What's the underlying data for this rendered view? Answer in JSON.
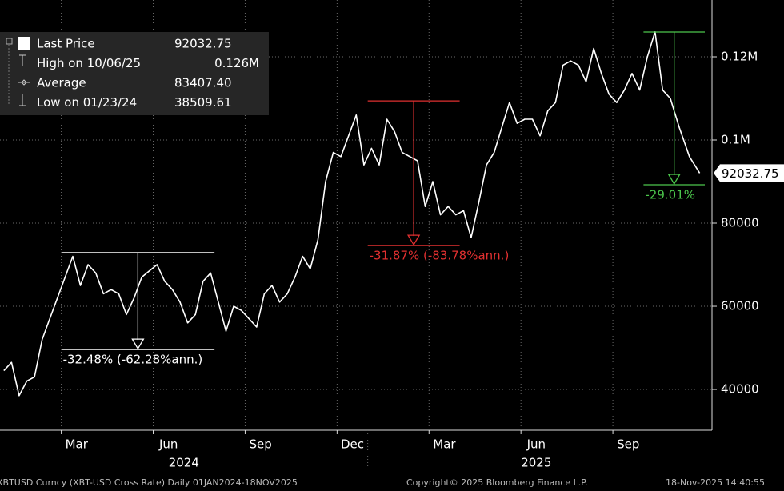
{
  "chart_data": {
    "type": "line",
    "xlim": [
      "2024-01",
      "2025-12"
    ],
    "ylim": [
      30200,
      133650
    ],
    "yticks": [
      40000,
      60000,
      80000,
      {
        "value": 100000,
        "label": "0.1M"
      },
      {
        "value": 120000,
        "label": "0.12M"
      }
    ],
    "xticks": [
      {
        "value": "2024-03",
        "label": "Mar"
      },
      {
        "value": "2024-06",
        "label": "Jun"
      },
      {
        "value": "2024-09",
        "label": "Sep"
      },
      {
        "value": "2024-12",
        "label": "Dec"
      },
      {
        "value": "2025-03",
        "label": "Mar"
      },
      {
        "value": "2025-06",
        "label": "Jun"
      },
      {
        "value": "2025-09",
        "label": "Sep"
      }
    ],
    "years": [
      {
        "value": "2024",
        "label": "2024"
      },
      {
        "value": "2025",
        "label": "2025"
      }
    ],
    "grid": true,
    "x": [
      "2024-01",
      "2024-01",
      "2024-01",
      "2024-01",
      "2024-02",
      "2024-02",
      "2024-02",
      "2024-02",
      "2024-03",
      "2024-03",
      "2024-03",
      "2024-03",
      "2024-04",
      "2024-04",
      "2024-04",
      "2024-04",
      "2024-05",
      "2024-05",
      "2024-05",
      "2024-05",
      "2024-06",
      "2024-06",
      "2024-06",
      "2024-06",
      "2024-07",
      "2024-07",
      "2024-07",
      "2024-07",
      "2024-08",
      "2024-08",
      "2024-08",
      "2024-08",
      "2024-09",
      "2024-09",
      "2024-09",
      "2024-09",
      "2024-10",
      "2024-10",
      "2024-10",
      "2024-10",
      "2024-11",
      "2024-11",
      "2024-11",
      "2024-11",
      "2024-12",
      "2024-12",
      "2024-12",
      "2024-12",
      "2025-01",
      "2025-01",
      "2025-01",
      "2025-01",
      "2025-02",
      "2025-02",
      "2025-02",
      "2025-02",
      "2025-03",
      "2025-03",
      "2025-03",
      "2025-03",
      "2025-04",
      "2025-04",
      "2025-04",
      "2025-04",
      "2025-05",
      "2025-05",
      "2025-05",
      "2025-05",
      "2025-06",
      "2025-06",
      "2025-06",
      "2025-06",
      "2025-07",
      "2025-07",
      "2025-07",
      "2025-07",
      "2025-08",
      "2025-08",
      "2025-08",
      "2025-08",
      "2025-09",
      "2025-09",
      "2025-09",
      "2025-09",
      "2025-10",
      "2025-10",
      "2025-10",
      "2025-10",
      "2025-11",
      "2025-11",
      "2025-11"
    ],
    "series": [
      {
        "name": "Last Price",
        "color": "#ffffff",
        "values": [
          44500,
          46500,
          38509.61,
          42000,
          43000,
          52000,
          57000,
          62000,
          67000,
          72000,
          65000,
          70000,
          68000,
          63000,
          64000,
          63000,
          58000,
          62000,
          67000,
          68500,
          70000,
          66000,
          64000,
          61000,
          56000,
          58000,
          66000,
          68000,
          61000,
          54000,
          60000,
          59000,
          57000,
          55000,
          63000,
          65000,
          61000,
          63000,
          67000,
          72000,
          69000,
          76000,
          90000,
          97000,
          96000,
          101000,
          106000,
          94000,
          98000,
          94000,
          105000,
          102000,
          97000,
          96000,
          95000,
          84000,
          90000,
          82000,
          84000,
          82000,
          83000,
          76500,
          85000,
          94000,
          97000,
          103000,
          109000,
          104000,
          105000,
          105000,
          101000,
          107000,
          109000,
          118000,
          119000,
          118000,
          114000,
          122000,
          116000,
          111000,
          109000,
          112000,
          116000,
          112000,
          120000,
          126000,
          112000,
          110000,
          103000,
          96000,
          92032.75
        ]
      }
    ],
    "legend_stats": [
      {
        "label": "Last Price",
        "value": "92032.75"
      },
      {
        "label": "High on 10/06/25",
        "value": "0.126M"
      },
      {
        "label": "Average",
        "value": "83407.40"
      },
      {
        "label": "Low on 01/23/24",
        "value": "38509.61"
      }
    ],
    "annotations": [
      {
        "text": "-32.48% (-62.28%ann.)",
        "color": "#ffffff",
        "high": 72900,
        "low": 49600,
        "x_start": "2024-03",
        "x_end": "2024-08"
      },
      {
        "text": "-31.87% (-83.78%ann.)",
        "color": "#e03030",
        "high": 109400,
        "low": 74600,
        "x_start": "2025-01",
        "x_end": "2025-04"
      },
      {
        "text": "-29.01%",
        "color": "#4cc74c",
        "high": 125960,
        "low": 89230,
        "x_start": "2025-10",
        "x_end": "2025-12"
      }
    ],
    "footer": {
      "left": "XBTUSD Curncy (XBT-USD Cross Rate) Daily 01JAN2024-18NOV2025",
      "center": "Copyright© 2025 Bloomberg Finance L.P.",
      "right": "18-Nov-2025 14:40:55"
    }
  }
}
